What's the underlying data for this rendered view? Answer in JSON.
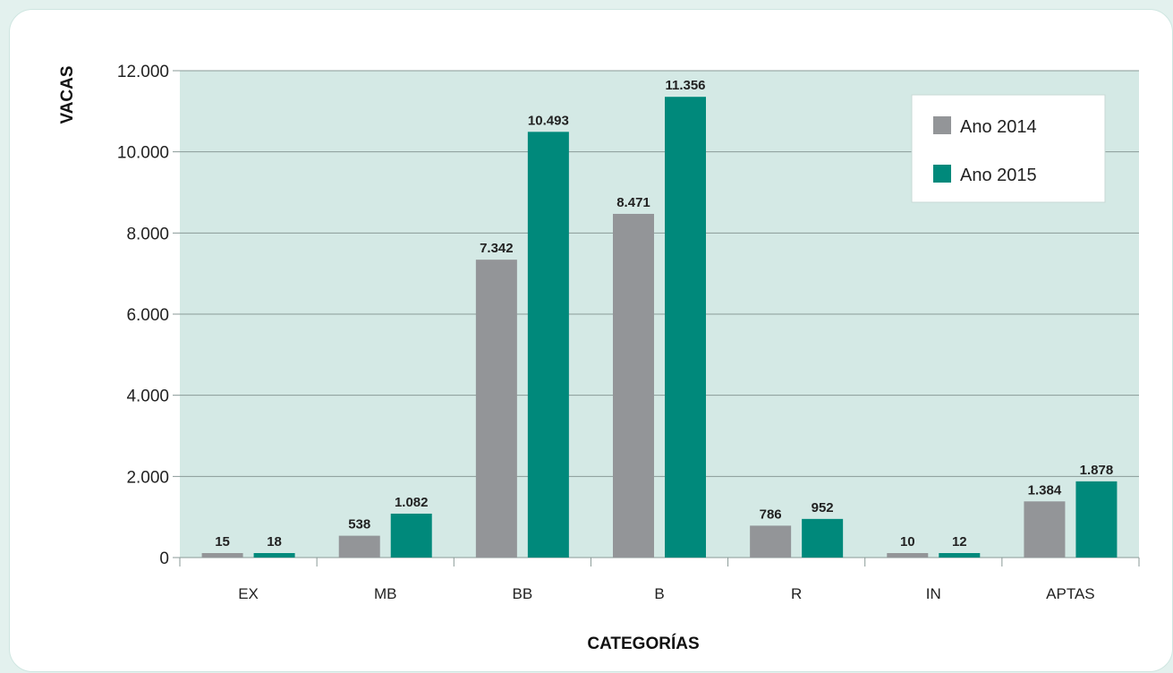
{
  "chart_data": {
    "type": "bar",
    "categories": [
      "EX",
      "MB",
      "BB",
      "B",
      "R",
      "IN",
      "APTAS"
    ],
    "series": [
      {
        "name": "Ano 2014",
        "color": "#939598",
        "values": [
          15,
          538,
          7342,
          8471,
          786,
          10,
          1384
        ],
        "labels": [
          "15",
          "538",
          "7.342",
          "8.471",
          "786",
          "10",
          "1.384"
        ]
      },
      {
        "name": "Ano 2015",
        "color": "#00897b",
        "values": [
          18,
          1082,
          10493,
          11356,
          952,
          12,
          1878
        ],
        "labels": [
          "18",
          "1.082",
          "10.493",
          "11.356",
          "952",
          "12",
          "1.878"
        ]
      }
    ],
    "ylim": [
      0,
      12000
    ],
    "yticks": [
      0,
      2000,
      4000,
      6000,
      8000,
      10000,
      12000
    ],
    "ytick_labels": [
      "0",
      "2.000",
      "4.000",
      "6.000",
      "8.000",
      "10.000",
      "12.000"
    ],
    "xlabel": "CATEGORÍAS",
    "ylabel": "VACAS",
    "grid": true,
    "legend_position": "top-right",
    "plot_background": "#d4e9e5"
  }
}
